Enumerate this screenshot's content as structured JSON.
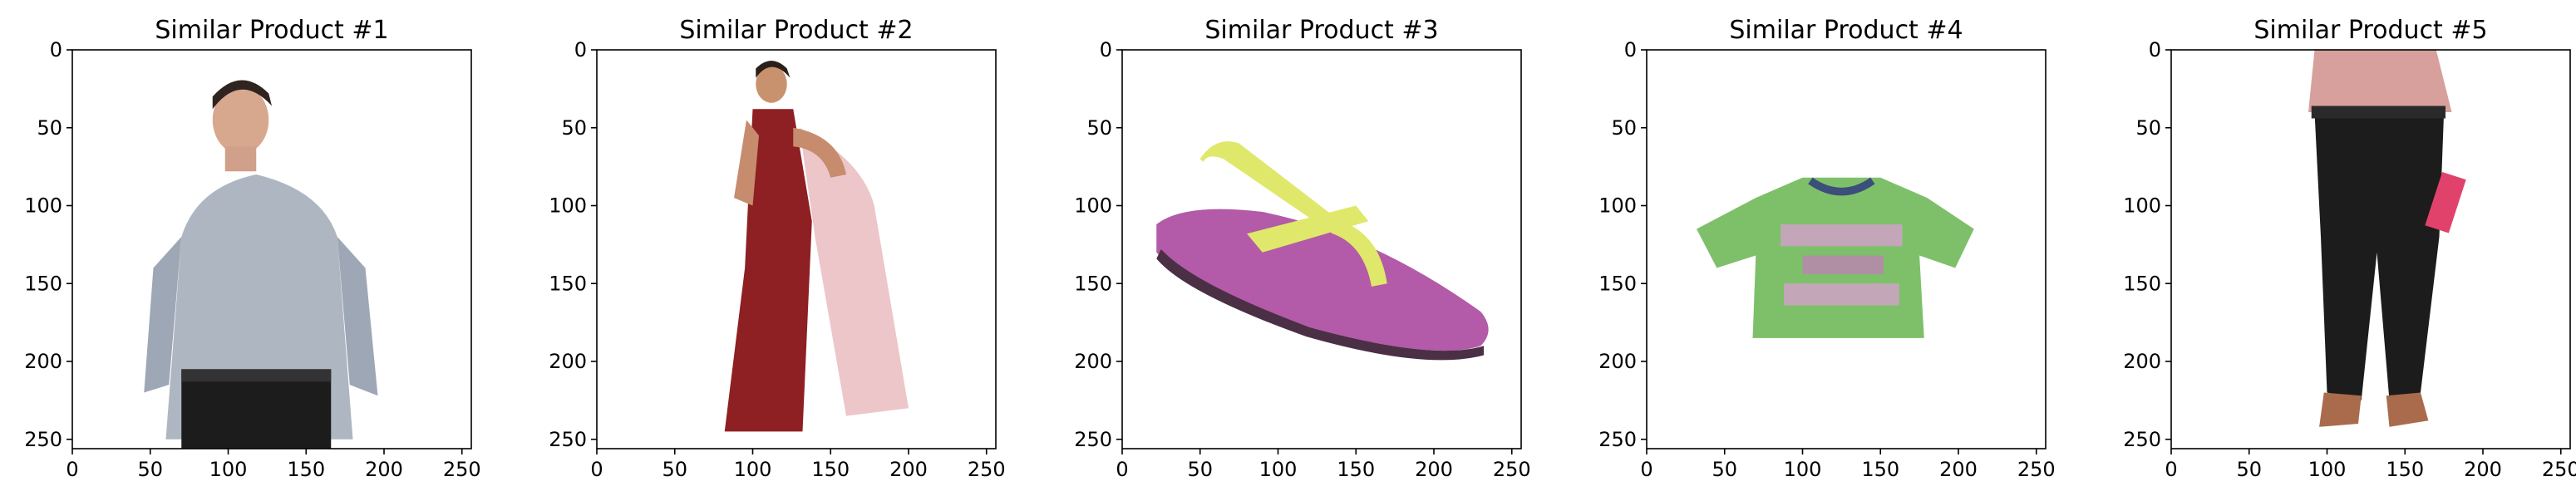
{
  "chart_data": [
    {
      "type": "image",
      "title": "Similar Product #1",
      "xlim": [
        0,
        256
      ],
      "ylim": [
        256,
        0
      ],
      "xticks": [
        0,
        50,
        100,
        150,
        200,
        250
      ],
      "yticks": [
        0,
        50,
        100,
        150,
        200,
        250
      ],
      "grid": false,
      "image": "man-grey-shirt-black-trousers"
    },
    {
      "type": "image",
      "title": "Similar Product #2",
      "xlim": [
        0,
        256
      ],
      "ylim": [
        256,
        0
      ],
      "xticks": [
        0,
        50,
        100,
        150,
        200,
        250
      ],
      "yticks": [
        0,
        50,
        100,
        150,
        200,
        250
      ],
      "grid": false,
      "image": "woman-red-saree"
    },
    {
      "type": "image",
      "title": "Similar Product #3",
      "xlim": [
        0,
        256
      ],
      "ylim": [
        256,
        0
      ],
      "xticks": [
        0,
        50,
        100,
        150,
        200,
        250
      ],
      "yticks": [
        0,
        50,
        100,
        150,
        200,
        250
      ],
      "grid": false,
      "image": "purple-yellow-flip-flop"
    },
    {
      "type": "image",
      "title": "Similar Product #4",
      "xlim": [
        0,
        256
      ],
      "ylim": [
        256,
        0
      ],
      "xticks": [
        0,
        50,
        100,
        150,
        200,
        250
      ],
      "yticks": [
        0,
        50,
        100,
        150,
        200,
        250
      ],
      "grid": false,
      "image": "green-kids-tshirt"
    },
    {
      "type": "image",
      "title": "Similar Product #5",
      "xlim": [
        0,
        256
      ],
      "ylim": [
        256,
        0
      ],
      "xticks": [
        0,
        50,
        100,
        150,
        200,
        250
      ],
      "yticks": [
        0,
        50,
        100,
        150,
        200,
        250
      ],
      "grid": false,
      "image": "black-trousers-with-pink-clutch"
    }
  ],
  "colors": {
    "axis": "#000000",
    "background": "#ffffff",
    "shirt_grey": "#aeb6c2",
    "trousers_black": "#1c1c1c",
    "saree_red": "#8e1f22",
    "sandal_purple": "#b35aa8",
    "strap_yellow": "#dfe86a",
    "tshirt_green": "#7ec06a",
    "clutch_pink": "#e0426c"
  }
}
